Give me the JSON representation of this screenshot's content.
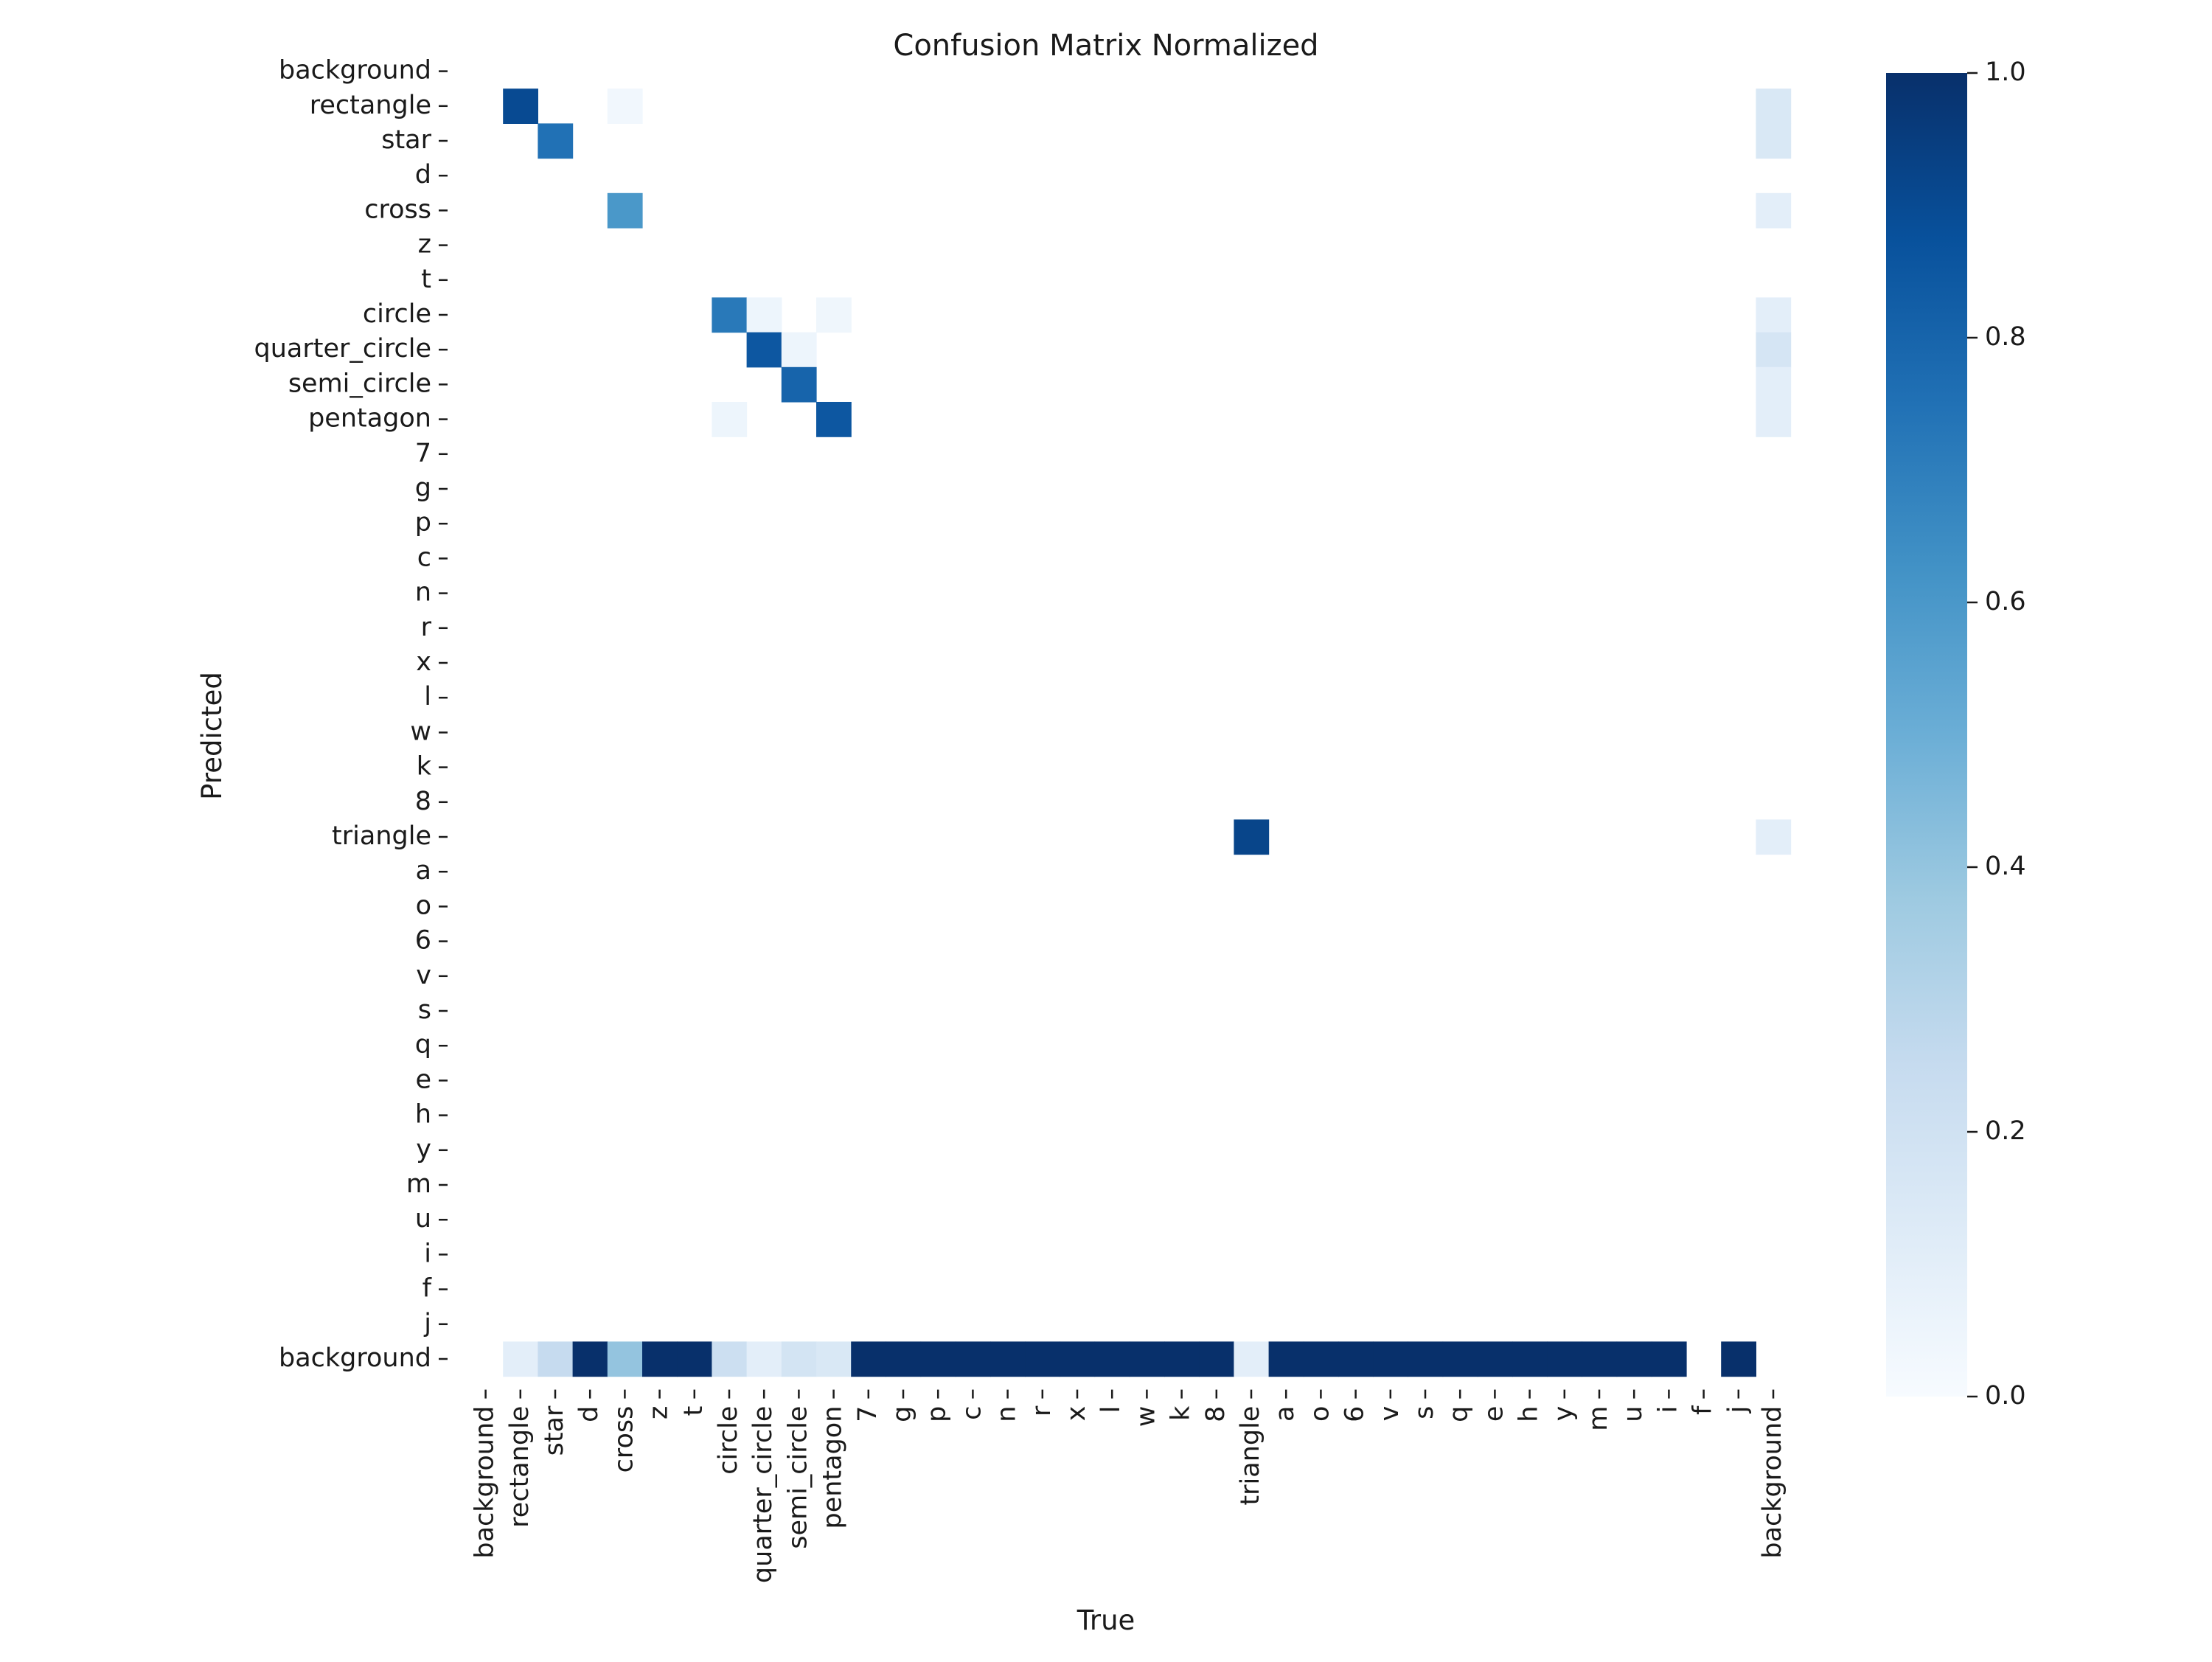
{
  "chart_data": {
    "type": "heatmap",
    "title": "Confusion Matrix Normalized",
    "xlabel": "True",
    "ylabel": "Predicted",
    "x_labels": [
      "background",
      "rectangle",
      "star",
      "d",
      "cross",
      "z",
      "t",
      "circle",
      "quarter_circle",
      "semi_circle",
      "pentagon",
      "7",
      "g",
      "p",
      "c",
      "n",
      "r",
      "x",
      "l",
      "w",
      "k",
      "8",
      "triangle",
      "a",
      "o",
      "6",
      "v",
      "s",
      "q",
      "e",
      "h",
      "y",
      "m",
      "u",
      "i",
      "f",
      "j",
      "background"
    ],
    "y_labels": [
      "background",
      "rectangle",
      "star",
      "d",
      "cross",
      "z",
      "t",
      "circle",
      "quarter_circle",
      "semi_circle",
      "pentagon",
      "7",
      "g",
      "p",
      "c",
      "n",
      "r",
      "x",
      "l",
      "w",
      "k",
      "8",
      "triangle",
      "a",
      "o",
      "6",
      "v",
      "s",
      "q",
      "e",
      "h",
      "y",
      "m",
      "u",
      "i",
      "f",
      "j",
      "background"
    ],
    "cells": [
      {
        "row": 1,
        "col": 1,
        "value": 0.9
      },
      {
        "row": 1,
        "col": 4,
        "value": 0.03
      },
      {
        "row": 1,
        "col": 37,
        "value": 0.15
      },
      {
        "row": 2,
        "col": 2,
        "value": 0.75
      },
      {
        "row": 2,
        "col": 37,
        "value": 0.15
      },
      {
        "row": 4,
        "col": 4,
        "value": 0.6
      },
      {
        "row": 4,
        "col": 37,
        "value": 0.1
      },
      {
        "row": 7,
        "col": 7,
        "value": 0.72
      },
      {
        "row": 7,
        "col": 8,
        "value": 0.05
      },
      {
        "row": 7,
        "col": 10,
        "value": 0.04
      },
      {
        "row": 7,
        "col": 37,
        "value": 0.1
      },
      {
        "row": 8,
        "col": 8,
        "value": 0.85
      },
      {
        "row": 8,
        "col": 9,
        "value": 0.05
      },
      {
        "row": 8,
        "col": 37,
        "value": 0.17
      },
      {
        "row": 9,
        "col": 9,
        "value": 0.8
      },
      {
        "row": 9,
        "col": 37,
        "value": 0.1
      },
      {
        "row": 10,
        "col": 7,
        "value": 0.05
      },
      {
        "row": 10,
        "col": 10,
        "value": 0.85
      },
      {
        "row": 10,
        "col": 37,
        "value": 0.1
      },
      {
        "row": 22,
        "col": 22,
        "value": 0.92
      },
      {
        "row": 22,
        "col": 37,
        "value": 0.1
      },
      {
        "row": 37,
        "col": 1,
        "value": 0.1
      },
      {
        "row": 37,
        "col": 2,
        "value": 0.25
      },
      {
        "row": 37,
        "col": 3,
        "value": 1.0
      },
      {
        "row": 37,
        "col": 4,
        "value": 0.4
      },
      {
        "row": 37,
        "col": 5,
        "value": 1.0
      },
      {
        "row": 37,
        "col": 6,
        "value": 1.0
      },
      {
        "row": 37,
        "col": 7,
        "value": 0.22
      },
      {
        "row": 37,
        "col": 8,
        "value": 0.1
      },
      {
        "row": 37,
        "col": 9,
        "value": 0.18
      },
      {
        "row": 37,
        "col": 10,
        "value": 0.15
      },
      {
        "row": 37,
        "col": 11,
        "value": 1.0
      },
      {
        "row": 37,
        "col": 12,
        "value": 1.0
      },
      {
        "row": 37,
        "col": 13,
        "value": 1.0
      },
      {
        "row": 37,
        "col": 14,
        "value": 1.0
      },
      {
        "row": 37,
        "col": 15,
        "value": 1.0
      },
      {
        "row": 37,
        "col": 16,
        "value": 1.0
      },
      {
        "row": 37,
        "col": 17,
        "value": 1.0
      },
      {
        "row": 37,
        "col": 18,
        "value": 1.0
      },
      {
        "row": 37,
        "col": 19,
        "value": 1.0
      },
      {
        "row": 37,
        "col": 20,
        "value": 1.0
      },
      {
        "row": 37,
        "col": 21,
        "value": 1.0
      },
      {
        "row": 37,
        "col": 22,
        "value": 0.1
      },
      {
        "row": 37,
        "col": 23,
        "value": 1.0
      },
      {
        "row": 37,
        "col": 24,
        "value": 1.0
      },
      {
        "row": 37,
        "col": 25,
        "value": 1.0
      },
      {
        "row": 37,
        "col": 26,
        "value": 1.0
      },
      {
        "row": 37,
        "col": 27,
        "value": 1.0
      },
      {
        "row": 37,
        "col": 28,
        "value": 1.0
      },
      {
        "row": 37,
        "col": 29,
        "value": 1.0
      },
      {
        "row": 37,
        "col": 30,
        "value": 1.0
      },
      {
        "row": 37,
        "col": 31,
        "value": 1.0
      },
      {
        "row": 37,
        "col": 32,
        "value": 1.0
      },
      {
        "row": 37,
        "col": 33,
        "value": 1.0
      },
      {
        "row": 37,
        "col": 34,
        "value": 1.0
      },
      {
        "row": 37,
        "col": 36,
        "value": 1.0
      }
    ],
    "colorbar": {
      "colormap": "Blues",
      "range": [
        0.0,
        1.0
      ],
      "ticks": [
        "0.0",
        "0.2",
        "0.4",
        "0.6",
        "0.8",
        "1.0"
      ]
    },
    "grid": false
  }
}
